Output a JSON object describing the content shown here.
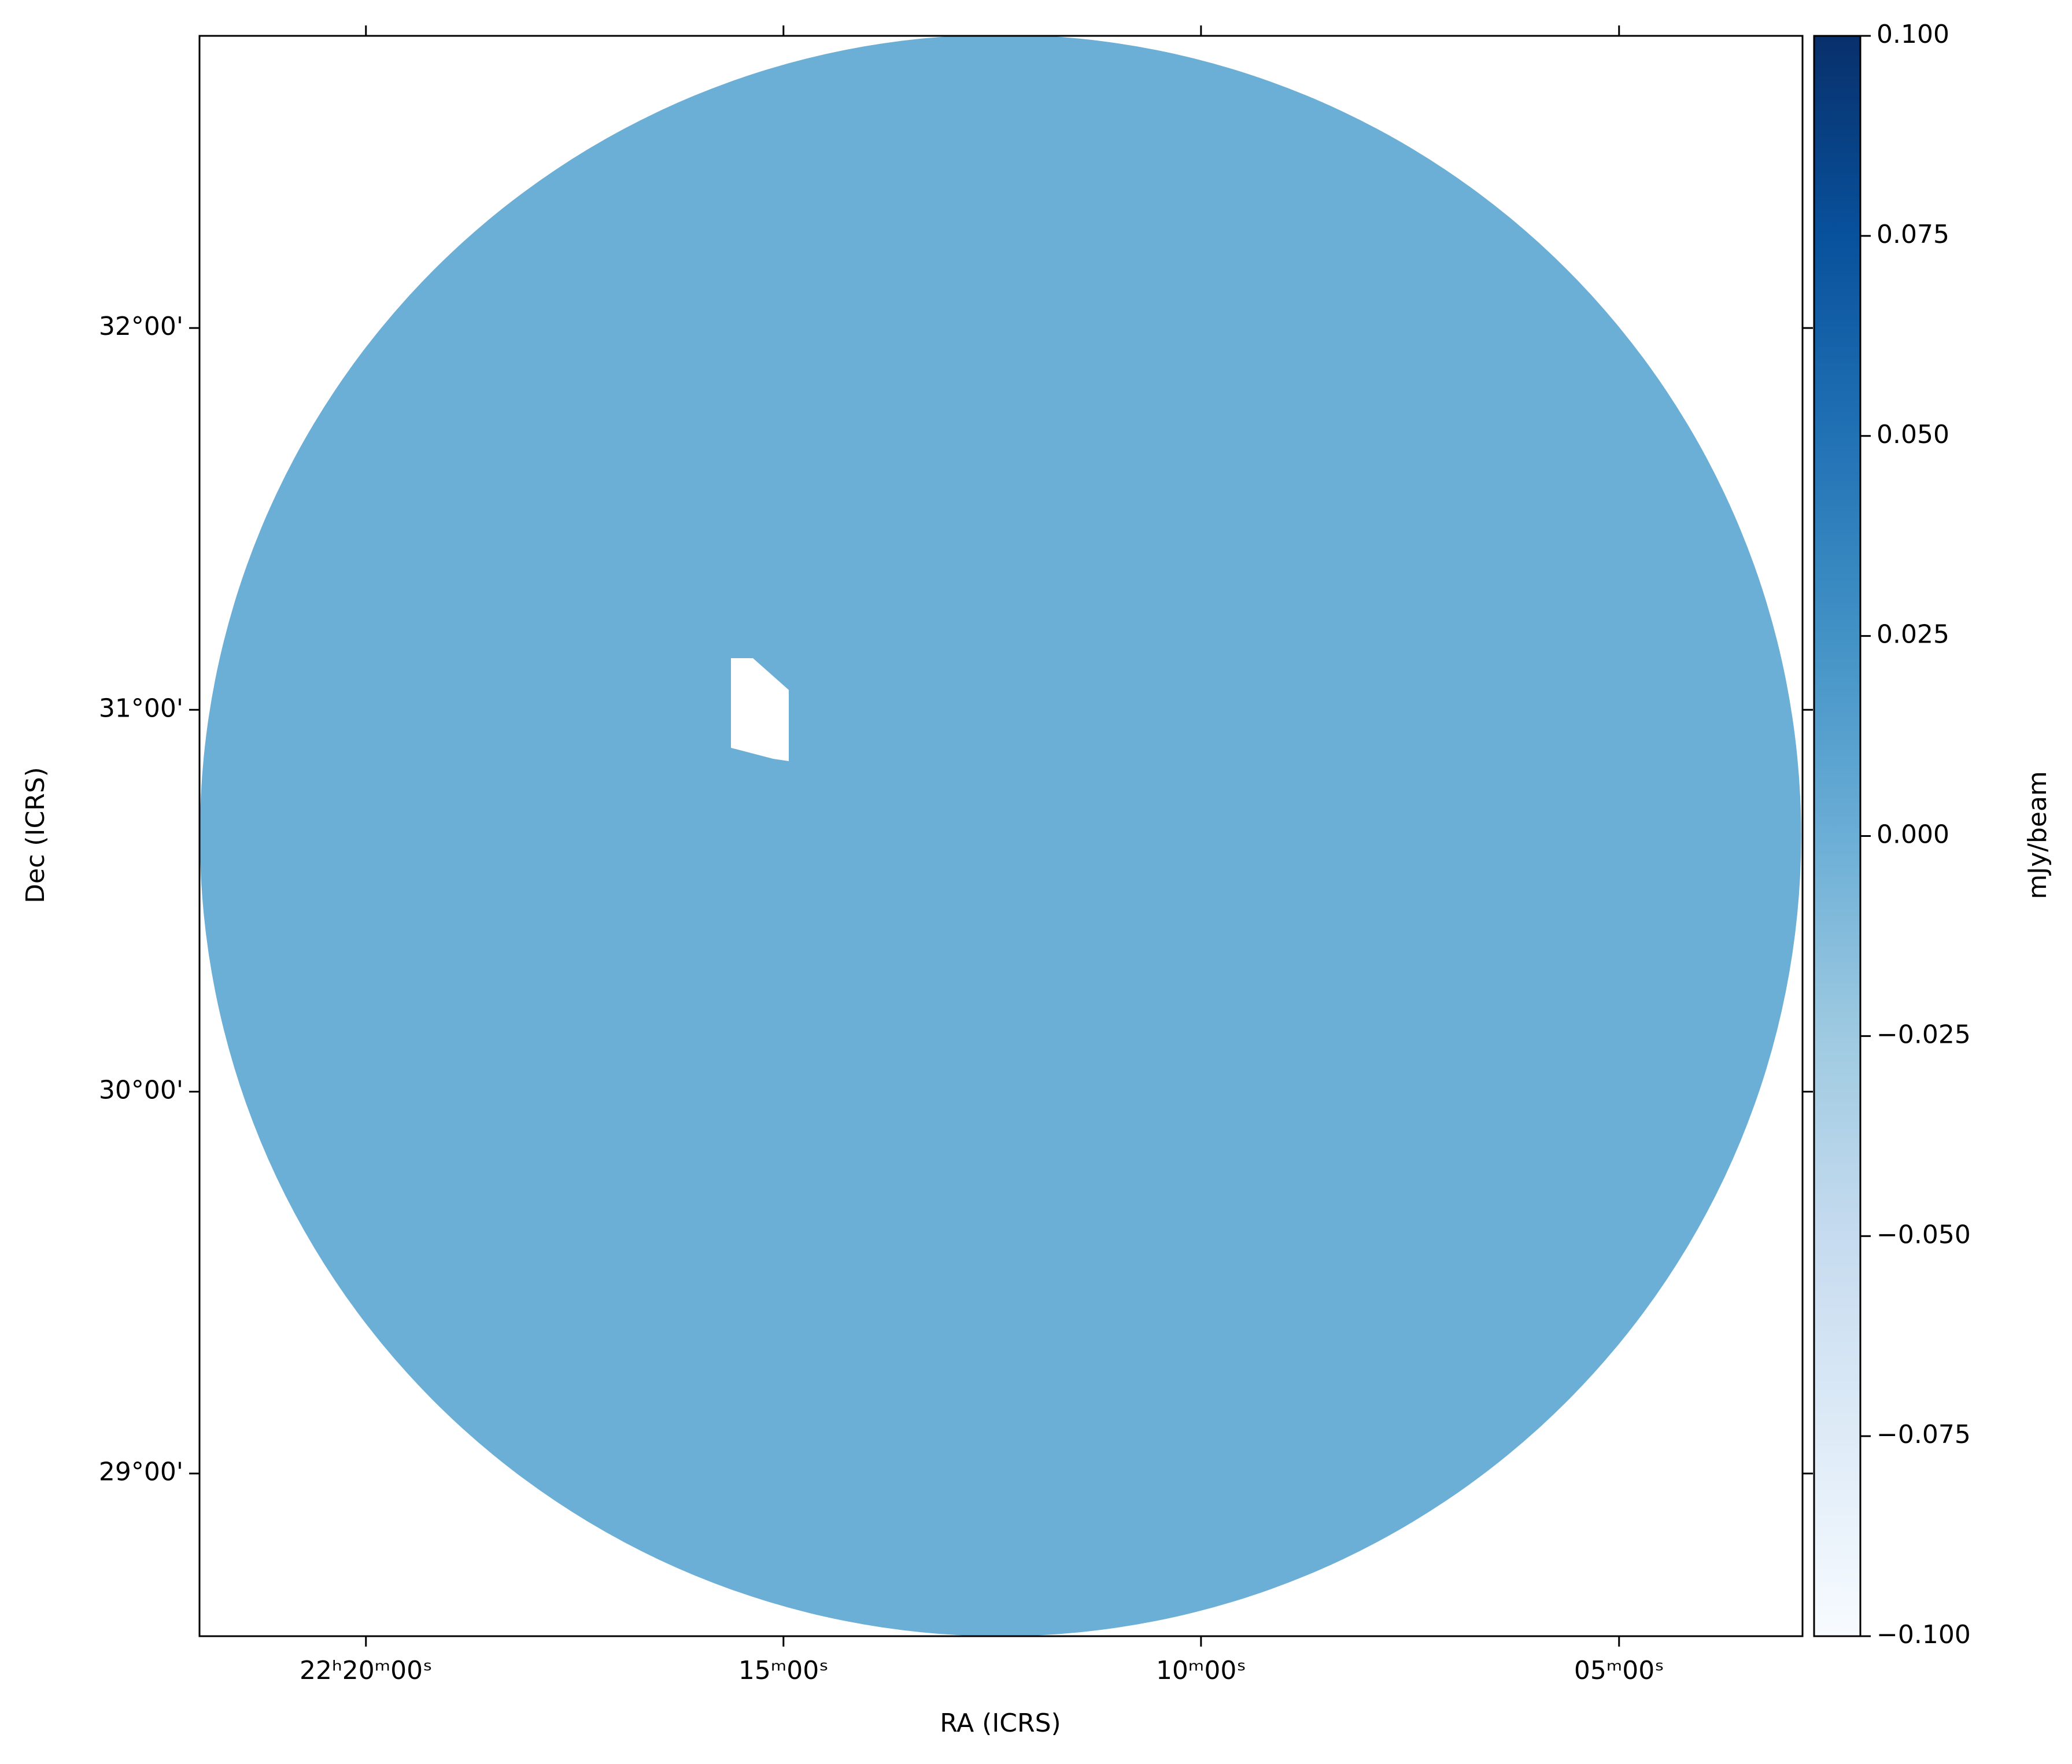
{
  "chart_data": {
    "type": "image",
    "x_label": "RA (ICRS)",
    "y_label": "Dec (ICRS)",
    "xlim": [
      22.3665,
      22.0467
    ],
    "xticks": [
      {
        "value": 22.3333,
        "label": "22ʰ20ᵐ00ˢ"
      },
      {
        "value": 22.25,
        "label": "15ᵐ00ˢ"
      },
      {
        "value": 22.1667,
        "label": "10ᵐ00ˢ"
      },
      {
        "value": 22.0833,
        "label": "05ᵐ00ˢ"
      }
    ],
    "ylim": [
      28.574,
      32.765
    ],
    "yticks": [
      {
        "value": 29,
        "label": "29°00'"
      },
      {
        "value": 30,
        "label": "30°00'"
      },
      {
        "value": 31,
        "label": "31°00'"
      },
      {
        "value": 32,
        "label": "32°00'"
      }
    ],
    "field": {
      "ra_center": 22.2067,
      "dec_center": 30.671,
      "radius_deg": 2.097,
      "value": 0
    },
    "colormap": "Blues",
    "colorbar": {
      "label": "mJy/beam",
      "clim": [
        -0.1,
        0.1
      ],
      "ticks": [
        {
          "value": -0.1,
          "label": "−0.100"
        },
        {
          "value": -0.075,
          "label": "−0.075"
        },
        {
          "value": -0.05,
          "label": "−0.050"
        },
        {
          "value": -0.025,
          "label": "−0.025"
        },
        {
          "value": 0,
          "label": "0.000"
        },
        {
          "value": 0.025,
          "label": "0.025"
        },
        {
          "value": 0.05,
          "label": "0.050"
        },
        {
          "value": 0.075,
          "label": "0.075"
        },
        {
          "value": 0.1,
          "label": "0.100"
        }
      ]
    }
  }
}
